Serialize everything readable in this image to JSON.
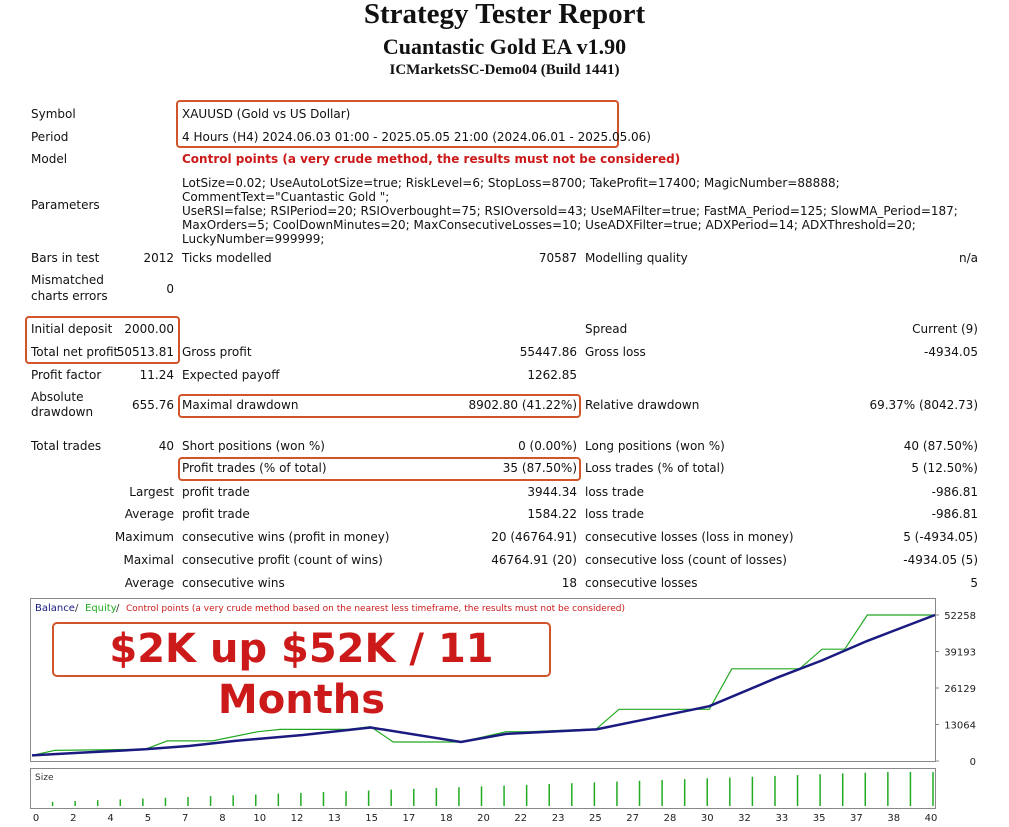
{
  "header": {
    "title": "Strategy Tester Report",
    "subtitle": "Cuantastic Gold EA v1.90",
    "server": "ICMarketsSC-Demo04 (Build 1441)"
  },
  "info": {
    "symbol_label": "Symbol",
    "symbol_value": "XAUUSD (Gold vs US Dollar)",
    "period_label": "Period",
    "period_value": "4 Hours (H4) 2024.06.03 01:00 - 2025.05.05 21:00 (2024.06.01 - 2025.05.06)",
    "model_label": "Model",
    "model_value": "Control points (a very crude method, the results must not be considered)",
    "parameters_label": "Parameters",
    "parameters_lines": [
      "LotSize=0.02; UseAutoLotSize=true; RiskLevel=6; StopLoss=8700; TakeProfit=17400; MagicNumber=88888; CommentText=\"Cuantastic Gold \";",
      "UseRSI=false; RSIPeriod=20; RSIOverbought=75; RSIOversold=43; UseMAFilter=true; FastMA_Period=125; SlowMA_Period=187;",
      "MaxOrders=5; CoolDownMinutes=20; MaxConsecutiveLosses=10; UseADXFilter=true; ADXPeriod=14; ADXThreshold=20;",
      "LuckyNumber=999999;"
    ]
  },
  "stats": {
    "bars_label": "Bars in test",
    "bars_value": "2012",
    "ticks_label": "Ticks modelled",
    "ticks_value": "70587",
    "quality_label": "Modelling quality",
    "quality_value": "n/a",
    "mismatch_label_1": "Mismatched",
    "mismatch_label_2": "charts errors",
    "mismatch_value": "0",
    "deposit_label": "Initial deposit",
    "deposit_value": "2000.00",
    "spread_label": "Spread",
    "spread_value": "Current (9)",
    "netprofit_label": "Total net profit",
    "netprofit_value": "50513.81",
    "grossprofit_label": "Gross profit",
    "grossprofit_value": "55447.86",
    "grossloss_label": "Gross loss",
    "grossloss_value": "-4934.05",
    "pf_label": "Profit factor",
    "pf_value": "11.24",
    "payoff_label": "Expected payoff",
    "payoff_value": "1262.85",
    "absdd_label_1": "Absolute",
    "absdd_label_2": "drawdown",
    "absdd_value": "655.76",
    "maxdd_label": "Maximal drawdown",
    "maxdd_value": "8902.80 (41.22%)",
    "reldd_label": "Relative drawdown",
    "reldd_value": "69.37% (8042.73)",
    "trades_label": "Total trades",
    "trades_value": "40",
    "short_label": "Short positions (won %)",
    "short_value": "0 (0.00%)",
    "long_label": "Long positions (won %)",
    "long_value": "40 (87.50%)",
    "profittr_label": "Profit trades (% of total)",
    "profittr_value": "35 (87.50%)",
    "losstr_label": "Loss trades (% of total)",
    "losstr_value": "5 (12.50%)",
    "largest_label": "Largest",
    "largest_pt_label": "profit trade",
    "largest_pt_value": "3944.34",
    "largest_lt_label": "loss trade",
    "largest_lt_value": "-986.81",
    "average_label": "Average",
    "average_pt_label": "profit trade",
    "average_pt_value": "1584.22",
    "average_lt_label": "loss trade",
    "average_lt_value": "-986.81",
    "maximum_label": "Maximum",
    "maximum_cw_label": "consecutive wins (profit in money)",
    "maximum_cw_value": "20 (46764.91)",
    "maximum_cl_label": "consecutive losses (loss in money)",
    "maximum_cl_value": "5 (-4934.05)",
    "maximal_label": "Maximal",
    "maximal_cp_label": "consecutive profit (count of wins)",
    "maximal_cp_value": "46764.91 (20)",
    "maximal_cll_label": "consecutive loss (count of losses)",
    "maximal_cll_value": "-4934.05 (5)",
    "avg2_label": "Average",
    "avg2_cw_label": "consecutive wins",
    "avg2_cw_value": "18",
    "avg2_cl_label": "consecutive losses",
    "avg2_cl_value": "5"
  },
  "chart_legend": {
    "balance": "Balance",
    "sep1": " / ",
    "equity": "Equity",
    "sep2": " / ",
    "control": "Control points (a very crude method based on the nearest less timeframe, the results must not be considered)"
  },
  "promo_text": "$2K up $52K / 11 Months",
  "size_label": "Size",
  "colors": {
    "balance": "#1a1a80",
    "equity": "#22aa22",
    "control": "#cc1a1a",
    "box": "#d2542a"
  },
  "chart_data": {
    "type": "line",
    "yticks": [
      "52258",
      "39193",
      "26129",
      "13064",
      "0"
    ],
    "ylim": [
      0,
      52258
    ],
    "xticks": [
      "0",
      "2",
      "4",
      "5",
      "7",
      "8",
      "10",
      "12",
      "13",
      "15",
      "17",
      "18",
      "20",
      "22",
      "23",
      "25",
      "27",
      "28",
      "30",
      "32",
      "33",
      "35",
      "37",
      "38",
      "40"
    ],
    "series": [
      {
        "name": "Balance",
        "x": [
          0,
          2,
          5,
          7,
          9,
          12,
          15,
          19,
          21,
          25,
          30,
          33,
          35,
          37,
          40
        ],
        "y": [
          2000,
          2900,
          4200,
          5400,
          7200,
          9300,
          12000,
          6800,
          9700,
          11300,
          19600,
          29800,
          36000,
          43000,
          52258
        ]
      },
      {
        "name": "Equity",
        "x": [
          0,
          1,
          5,
          6,
          8,
          10,
          11,
          14,
          15,
          16,
          19,
          21,
          22,
          25,
          26,
          30,
          31,
          34,
          35,
          36,
          37,
          40
        ],
        "y": [
          2000,
          3800,
          4200,
          7200,
          7200,
          10500,
          11300,
          11300,
          12300,
          6800,
          6800,
          10500,
          10500,
          11500,
          18500,
          18500,
          33000,
          33000,
          40000,
          40000,
          52258,
          52258
        ]
      }
    ],
    "size_bars": {
      "x": [
        1,
        2,
        3,
        4,
        5,
        6,
        7,
        8,
        9,
        10,
        11,
        12,
        13,
        14,
        15,
        16,
        17,
        18,
        19,
        20,
        21,
        22,
        23,
        24,
        25,
        26,
        27,
        28,
        29,
        30,
        31,
        32,
        33,
        34,
        35,
        36,
        37,
        38,
        39,
        40
      ],
      "y": [
        0.5,
        0.5,
        0.5,
        0.5,
        0.5,
        0.5,
        0.5,
        0.5,
        0.5,
        0.5,
        0.5,
        0.5,
        0.5,
        0.5,
        0.5,
        0.5,
        0.5,
        0.5,
        0.5,
        0.5,
        0.5,
        0.5,
        0.5,
        0.5,
        0.5,
        0.5,
        0.5,
        0.5,
        0.5,
        0.5,
        0.5,
        0.5,
        0.5,
        0.5,
        0.5,
        0.5,
        0.5,
        0.5,
        0.5,
        0.5
      ]
    }
  }
}
